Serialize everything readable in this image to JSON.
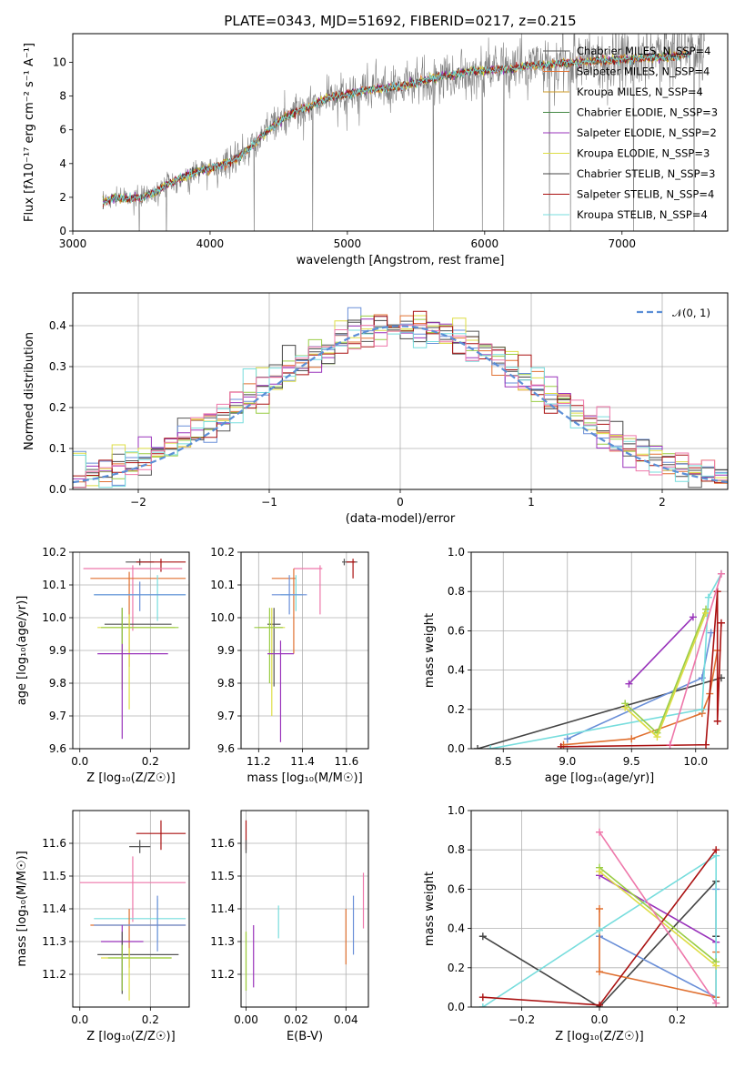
{
  "figure": {
    "title": "PLATE=0343, MJD=51692, FIBERID=0217, z=0.215"
  },
  "colors": [
    "#555555",
    "#e07030",
    "#6a8fd8",
    "#99cc44",
    "#9933bb",
    "#dddd44",
    "#444444",
    "#aa1111",
    "#77dddd",
    "#ee77aa",
    "#cc9922"
  ],
  "chart_data": [
    {
      "id": "spectrum",
      "type": "line",
      "xlabel": "wavelength [Angstrom, rest frame]",
      "ylabel": "Flux [fλ10⁻¹⁷ erg cm⁻² s⁻¹ A⁻¹]",
      "xlim": [
        3000,
        7770
      ],
      "ylim": [
        0,
        11.7
      ],
      "xticks": [
        "3000",
        "4000",
        "5000",
        "6000",
        "7000"
      ],
      "yticks": [
        "0",
        "2",
        "4",
        "6",
        "8",
        "10"
      ],
      "legend_position": "top-right",
      "legend": [
        "Chabrier MILES, N_SSP=4",
        "Salpeter MILES, N_SSP=4",
        "Kroupa MILES, N_SSP=4",
        "Chabrier ELODIE, N_SSP=3",
        "Salpeter ELODIE, N_SSP=2",
        "Kroupa ELODIE, N_SSP=3",
        "Chabrier STELIB, N_SSP=3",
        "Salpeter STELIB, N_SSP=4",
        "Kroupa STELIB, N_SSP=4"
      ],
      "legend_colors": [
        "#555555",
        "#e07030",
        "#cc9922",
        "#448844",
        "#9933bb",
        "#dddd44",
        "#444444",
        "#aa1111",
        "#77dddd"
      ],
      "x": [
        3220,
        3300,
        3400,
        3500,
        3600,
        3700,
        3800,
        3900,
        4000,
        4100,
        4200,
        4300,
        4400,
        4500,
        4600,
        4700,
        4800,
        4900,
        5000,
        5100,
        5200,
        5300,
        5400,
        5500,
        5600,
        5700,
        5800,
        5900,
        6000,
        6100,
        6200,
        6300,
        6400,
        6500,
        6600,
        6700,
        6800,
        6900,
        7000,
        7100,
        7200,
        7300,
        7400,
        7500
      ],
      "y": [
        1.7,
        2.0,
        1.9,
        2.0,
        2.3,
        2.8,
        3.2,
        3.5,
        3.7,
        4.0,
        4.3,
        5.0,
        5.8,
        6.5,
        7.0,
        7.3,
        7.7,
        8.0,
        8.1,
        8.3,
        8.4,
        8.5,
        8.6,
        8.8,
        9.0,
        9.2,
        9.3,
        9.5,
        9.5,
        9.6,
        9.6,
        9.8,
        9.8,
        9.9,
        10.0,
        10.0,
        10.1,
        10.1,
        10.2,
        10.2,
        10.3,
        10.3,
        10.4,
        10.5
      ]
    },
    {
      "id": "residuals",
      "type": "histogram",
      "xlabel": "(data-model)/error",
      "ylabel": "Normed distribution",
      "xlim": [
        -2.5,
        2.5
      ],
      "ylim": [
        0,
        0.48
      ],
      "xticks": [
        "−2",
        "−1",
        "0",
        "1",
        "2"
      ],
      "yticks": [
        "0.0",
        "0.1",
        "0.2",
        "0.3",
        "0.4"
      ],
      "legend_position": "top-right",
      "legend": [
        "𝒩(0, 1)"
      ],
      "bin_width": 0.1
    },
    {
      "id": "age-vs-z",
      "type": "errorbar",
      "xlabel": "Z [log₁₀(Z/Z☉)]",
      "ylabel": "age  [log₁₀(age/yr)]",
      "xlim": [
        -0.02,
        0.31
      ],
      "ylim": [
        9.6,
        10.2
      ],
      "xticks": [
        "0.0",
        "0.2"
      ],
      "yticks": [
        "9.6",
        "9.7",
        "9.8",
        "9.9",
        "10.0",
        "10.1",
        "10.2"
      ],
      "points": [
        {
          "x": 0.17,
          "y": 10.17,
          "xerr": [
            0.04,
            0.04
          ],
          "yerr": [
            0.01,
            0.01
          ],
          "color": "#555555"
        },
        {
          "x": 0.23,
          "y": 10.17,
          "xerr": [
            0.07,
            0.07
          ],
          "yerr": [
            0.03,
            0.01
          ],
          "color": "#aa1111"
        },
        {
          "x": 0.15,
          "y": 10.15,
          "xerr": [
            0.14,
            0.14
          ],
          "yerr": [
            0.19,
            0.01
          ],
          "color": "#ee77aa"
        },
        {
          "x": 0.14,
          "y": 10.12,
          "xerr": [
            0.11,
            0.16
          ],
          "yerr": [
            0.27,
            0.02
          ],
          "color": "#e07030"
        },
        {
          "x": 0.22,
          "y": 10.07,
          "xerr": [
            0.18,
            0.08
          ],
          "yerr": [
            0.08,
            0.06
          ],
          "color": "#77dddd"
        },
        {
          "x": 0.17,
          "y": 10.07,
          "xerr": [
            0.13,
            0.13
          ],
          "yerr": [
            0.05,
            0.04
          ],
          "color": "#6a8fd8"
        },
        {
          "x": 0.12,
          "y": 9.98,
          "xerr": [
            0.05,
            0.14
          ],
          "yerr": [
            0.06,
            0.05
          ],
          "color": "#555555"
        },
        {
          "x": 0.14,
          "y": 9.97,
          "xerr": [
            0.09,
            0.13
          ],
          "yerr": [
            0.25,
            0.04
          ],
          "color": "#dddd44"
        },
        {
          "x": 0.12,
          "y": 9.97,
          "xerr": [
            0.06,
            0.16
          ],
          "yerr": [
            0.19,
            0.06
          ],
          "color": "#99cc44"
        },
        {
          "x": 0.12,
          "y": 9.89,
          "xerr": [
            0.07,
            0.13
          ],
          "yerr": [
            0.26,
            0.03
          ],
          "color": "#9933bb"
        }
      ]
    },
    {
      "id": "age-vs-mass",
      "type": "errorbar",
      "xlabel": "mass [log₁₀(M/M☉)]",
      "xlim": [
        11.12,
        11.7
      ],
      "ylim": [
        9.6,
        10.2
      ],
      "xticks": [
        "11.2",
        "11.4",
        "11.6"
      ],
      "yticks": [
        "9.6",
        "9.7",
        "9.8",
        "9.9",
        "10.0",
        "10.1",
        "10.2"
      ],
      "points": [
        {
          "x": 11.59,
          "y": 10.17,
          "xerr": [
            0.01,
            0.06
          ],
          "yerr": [
            0.01,
            0.01
          ],
          "color": "#555555"
        },
        {
          "x": 11.63,
          "y": 10.17,
          "xerr": [
            0.03,
            0.01
          ],
          "yerr": [
            0.05,
            0.01
          ],
          "color": "#aa1111"
        },
        {
          "x": 11.48,
          "y": 10.15,
          "xerr": [
            0.12,
            0.01
          ],
          "yerr": [
            0.14,
            0.01
          ],
          "color": "#ee77aa"
        },
        {
          "x": 11.36,
          "y": 10.12,
          "xerr": [
            0.1,
            0.01
          ],
          "yerr": [
            0.23,
            0.03
          ],
          "color": "#e07030"
        },
        {
          "x": 11.37,
          "y": 10.07,
          "xerr": [
            0.07,
            0.03
          ],
          "yerr": [
            0.05,
            0.06
          ],
          "color": "#77dddd"
        },
        {
          "x": 11.34,
          "y": 10.07,
          "xerr": [
            0.08,
            0.08
          ],
          "yerr": [
            0.06,
            0.06
          ],
          "color": "#6a8fd8"
        },
        {
          "x": 11.27,
          "y": 9.98,
          "xerr": [
            0.03,
            0.03
          ],
          "yerr": [
            0.19,
            0.05
          ],
          "color": "#555555"
        },
        {
          "x": 11.26,
          "y": 9.97,
          "xerr": [
            0.06,
            0.06
          ],
          "yerr": [
            0.27,
            0.06
          ],
          "color": "#dddd44"
        },
        {
          "x": 11.25,
          "y": 9.97,
          "xerr": [
            0.07,
            0.06
          ],
          "yerr": [
            0.17,
            0.06
          ],
          "color": "#99cc44"
        },
        {
          "x": 11.3,
          "y": 9.89,
          "xerr": [
            0.06,
            0.06
          ],
          "yerr": [
            0.27,
            0.04
          ],
          "color": "#9933bb"
        }
      ]
    },
    {
      "id": "mass-weight-vs-age",
      "type": "line",
      "xlabel": "age  [log₁₀(age/yr)]",
      "ylabel": "mass weight",
      "xlim": [
        8.25,
        10.25
      ],
      "ylim": [
        0,
        1.0
      ],
      "xticks": [
        "8.5",
        "9.0",
        "9.5",
        "10.0"
      ],
      "yticks": [
        "0.0",
        "0.2",
        "0.4",
        "0.6",
        "0.8",
        "1.0"
      ],
      "series": [
        {
          "color": "#444444",
          "x": [
            8.3,
            10.2
          ],
          "y": [
            0.0,
            0.36
          ]
        },
        {
          "color": "#9933bb",
          "x": [
            9.48,
            9.98
          ],
          "y": [
            0.33,
            0.67
          ]
        },
        {
          "color": "#6a8fd8",
          "x": [
            9.0,
            10.05,
            10.12
          ],
          "y": [
            0.05,
            0.36,
            0.59
          ]
        },
        {
          "color": "#e07030",
          "x": [
            8.97,
            9.5,
            10.05,
            10.11,
            10.17
          ],
          "y": [
            0.02,
            0.05,
            0.18,
            0.28,
            0.5
          ]
        },
        {
          "color": "#77dddd",
          "x": [
            8.4,
            10.05,
            10.1,
            10.2
          ],
          "y": [
            0.0,
            0.2,
            0.77,
            0.89
          ]
        },
        {
          "color": "#99cc44",
          "x": [
            9.45,
            9.7,
            10.08
          ],
          "y": [
            0.23,
            0.08,
            0.71
          ]
        },
        {
          "color": "#dddd44",
          "x": [
            9.45,
            9.7,
            10.08
          ],
          "y": [
            0.21,
            0.06,
            0.69
          ]
        },
        {
          "color": "#aa1111",
          "x": [
            8.95,
            10.08,
            10.17,
            10.17,
            10.2
          ],
          "y": [
            0.01,
            0.02,
            0.8,
            0.14,
            0.64
          ]
        },
        {
          "color": "#ee77aa",
          "x": [
            9.8,
            10.2
          ],
          "y": [
            0.02,
            0.89
          ]
        }
      ]
    },
    {
      "id": "mass-vs-z",
      "type": "errorbar",
      "xlabel": "Z [log₁₀(Z/Z☉)]",
      "ylabel": "mass [log₁₀(M/M☉)]",
      "xlim": [
        -0.02,
        0.31
      ],
      "ylim": [
        11.1,
        11.7
      ],
      "xticks": [
        "0.0",
        "0.2"
      ],
      "yticks": [
        "11.2",
        "11.3",
        "11.4",
        "11.5",
        "11.6"
      ],
      "points": [
        {
          "x": 0.23,
          "y": 11.63,
          "xerr": [
            0.07,
            0.07
          ],
          "yerr": [
            0.05,
            0.04
          ],
          "color": "#aa1111"
        },
        {
          "x": 0.17,
          "y": 11.59,
          "xerr": [
            0.03,
            0.03
          ],
          "yerr": [
            0.02,
            0.02
          ],
          "color": "#555555"
        },
        {
          "x": 0.15,
          "y": 11.48,
          "xerr": [
            0.15,
            0.15
          ],
          "yerr": [
            0.12,
            0.08
          ],
          "color": "#ee77aa"
        },
        {
          "x": 0.22,
          "y": 11.37,
          "xerr": [
            0.18,
            0.08
          ],
          "yerr": [
            0.07,
            0.06
          ],
          "color": "#77dddd"
        },
        {
          "x": 0.14,
          "y": 11.35,
          "xerr": [
            0.11,
            0.16
          ],
          "yerr": [
            0.13,
            0.05
          ],
          "color": "#e07030"
        },
        {
          "x": 0.22,
          "y": 11.35,
          "xerr": [
            0.18,
            0.08
          ],
          "yerr": [
            0.08,
            0.09
          ],
          "color": "#6a8fd8"
        },
        {
          "x": 0.12,
          "y": 11.3,
          "xerr": [
            0.06,
            0.06
          ],
          "yerr": [
            0.15,
            0.05
          ],
          "color": "#9933bb"
        },
        {
          "x": 0.12,
          "y": 11.26,
          "xerr": [
            0.07,
            0.16
          ],
          "yerr": [
            0.12,
            0.07
          ],
          "color": "#555555"
        },
        {
          "x": 0.14,
          "y": 11.25,
          "xerr": [
            0.08,
            0.12
          ],
          "yerr": [
            0.13,
            0.03
          ],
          "color": "#dddd44"
        },
        {
          "x": 0.12,
          "y": 11.25,
          "xerr": [
            0.04,
            0.14
          ],
          "yerr": [
            0.1,
            0.04
          ],
          "color": "#99cc44"
        }
      ]
    },
    {
      "id": "mass-vs-ebv",
      "type": "errorbar",
      "xlabel": "E(B-V)",
      "xlim": [
        -0.002,
        0.049
      ],
      "ylim": [
        11.1,
        11.7
      ],
      "xticks": [
        "0.00",
        "0.02",
        "0.04"
      ],
      "yticks": [
        "11.2",
        "11.3",
        "11.4",
        "11.5",
        "11.6"
      ],
      "points": [
        {
          "x": 0.0,
          "y": 11.62,
          "xerr": [
            0,
            0
          ],
          "yerr": [
            0.04,
            0.05
          ],
          "color": "#aa1111"
        },
        {
          "x": 0.0,
          "y": 11.59,
          "xerr": [
            0,
            0
          ],
          "yerr": [
            0.02,
            0.02
          ],
          "color": "#555555"
        },
        {
          "x": 0.0,
          "y": 11.25,
          "xerr": [
            0,
            0
          ],
          "yerr": [
            0.1,
            0.08
          ],
          "color": "#dddd44"
        },
        {
          "x": 0.0,
          "y": 11.26,
          "xerr": [
            0,
            0
          ],
          "yerr": [
            0.11,
            0.07
          ],
          "color": "#99cc44"
        },
        {
          "x": 0.003,
          "y": 11.26,
          "xerr": [
            0,
            0
          ],
          "yerr": [
            0.1,
            0.09
          ],
          "color": "#9933bb"
        },
        {
          "x": 0.013,
          "y": 11.36,
          "xerr": [
            0,
            0
          ],
          "yerr": [
            0.05,
            0.05
          ],
          "color": "#77dddd"
        },
        {
          "x": 0.04,
          "y": 11.32,
          "xerr": [
            0,
            0
          ],
          "yerr": [
            0.09,
            0.08
          ],
          "color": "#e07030"
        },
        {
          "x": 0.043,
          "y": 11.35,
          "xerr": [
            0,
            0
          ],
          "yerr": [
            0.09,
            0.09
          ],
          "color": "#6a8fd8"
        },
        {
          "x": 0.047,
          "y": 11.42,
          "xerr": [
            0,
            0
          ],
          "yerr": [
            0.08,
            0.09
          ],
          "color": "#ee77aa"
        }
      ]
    },
    {
      "id": "mass-weight-vs-z",
      "type": "line",
      "xlabel": "Z [log₁₀(Z/Z☉)]",
      "ylabel": "mass weight",
      "xlim": [
        -0.33,
        0.33
      ],
      "ylim": [
        0,
        1.0
      ],
      "xticks": [
        "−0.2",
        "0.0",
        "0.2"
      ],
      "yticks": [
        "0.0",
        "0.2",
        "0.4",
        "0.6",
        "0.8",
        "1.0"
      ],
      "series": [
        {
          "color": "#444444",
          "x": [
            -0.3,
            0.0,
            0.3,
            0.3
          ],
          "y": [
            0.36,
            0.0,
            0.64,
            0.36
          ]
        },
        {
          "color": "#9933bb",
          "x": [
            0.0,
            0.3
          ],
          "y": [
            0.67,
            0.33
          ]
        },
        {
          "color": "#6a8fd8",
          "x": [
            0.0,
            0.3,
            0.3
          ],
          "y": [
            0.36,
            0.05,
            0.6
          ]
        },
        {
          "color": "#e07030",
          "x": [
            0.0,
            0.0,
            0.3,
            0.3
          ],
          "y": [
            0.5,
            0.18,
            0.05,
            0.28
          ]
        },
        {
          "color": "#77dddd",
          "x": [
            -0.3,
            0.0,
            0.3,
            0.3
          ],
          "y": [
            0.0,
            0.39,
            0.77,
            0.02
          ]
        },
        {
          "color": "#99cc44",
          "x": [
            0.0,
            0.3
          ],
          "y": [
            0.71,
            0.23
          ]
        },
        {
          "color": "#dddd44",
          "x": [
            0.0,
            0.3
          ],
          "y": [
            0.69,
            0.21
          ]
        },
        {
          "color": "#aa1111",
          "x": [
            -0.3,
            0.0,
            0.3
          ],
          "y": [
            0.05,
            0.01,
            0.8
          ]
        },
        {
          "color": "#ee77aa",
          "x": [
            0.0,
            0.3
          ],
          "y": [
            0.89,
            0.02
          ]
        }
      ]
    }
  ]
}
